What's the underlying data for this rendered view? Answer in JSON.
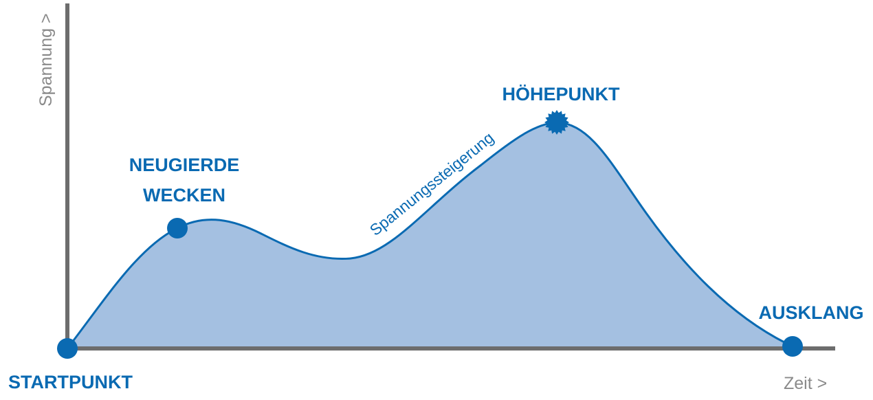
{
  "axes": {
    "y_label": "Spannung >",
    "x_label": "Zeit >"
  },
  "labels": {
    "start": "STARTPUNKT",
    "curiosity_line1": "NEUGIERDE",
    "curiosity_line2": "WECKEN",
    "climax": "HÖHEPUNKT",
    "ending": "AUSKLANG",
    "rising_tension": "Spannungssteigerung"
  },
  "colors": {
    "curve": "#0a6ab2",
    "fill": "#a4c0e1",
    "axis": "#6d6d6d",
    "axis_text": "#8a8a8a"
  }
}
